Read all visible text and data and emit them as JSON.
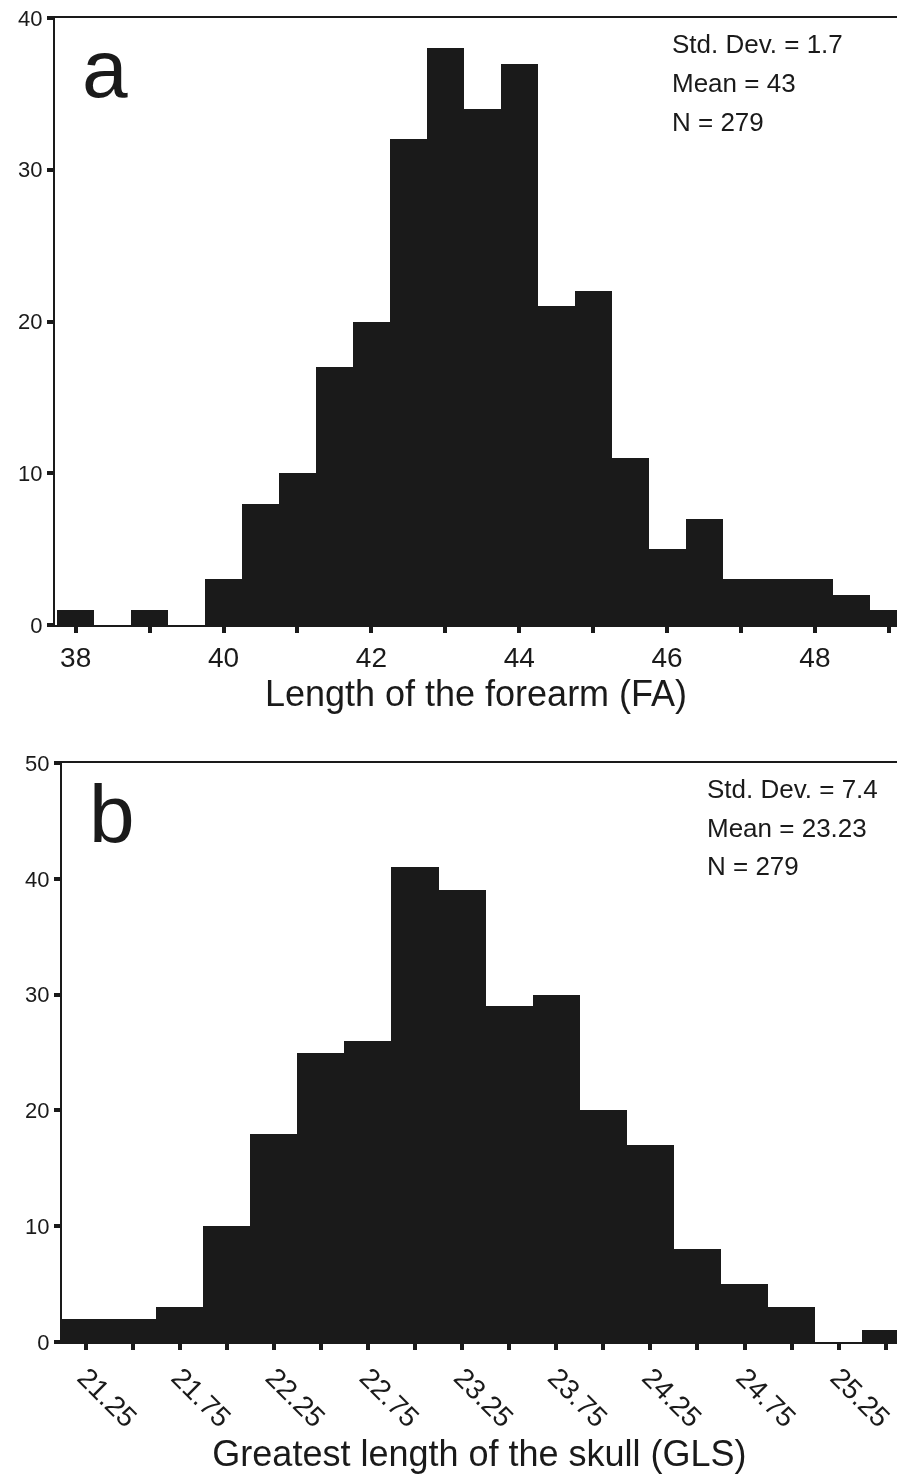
{
  "chart_data": [
    {
      "type": "histogram",
      "color": "#1a1a1a",
      "xlabel": "Length of the forearm (FA)",
      "bins": [
        37.75,
        38.25,
        38.75,
        39.25,
        39.75,
        40.25,
        40.75,
        41.25,
        41.75,
        42.25,
        42.75,
        43.25,
        43.75,
        44.25,
        44.75,
        45.25,
        45.75,
        46.25,
        46.75,
        47.25,
        47.75,
        48.25,
        48.75,
        49.25
      ],
      "values": [
        1,
        0,
        1,
        0,
        3,
        8,
        10,
        17,
        20,
        32,
        38,
        34,
        37,
        21,
        22,
        11,
        5,
        7,
        3,
        3,
        3,
        2,
        1
      ],
      "xlim": [
        37.72,
        49.11
      ],
      "xticks": [
        38,
        {
          "value": 39,
          "label": null
        },
        40,
        {
          "value": 41,
          "label": null
        },
        42,
        {
          "value": 43,
          "label": null
        },
        44,
        {
          "value": 45,
          "label": null
        },
        46,
        {
          "value": 47,
          "label": null
        },
        48,
        {
          "value": 49,
          "label": null
        }
      ],
      "ylim": [
        0,
        40
      ],
      "yticks": [
        0,
        10,
        20,
        30,
        40
      ],
      "annotations": [
        "a",
        "Std. Dev. = 1.7",
        "Mean = 43",
        "N = 279"
      ]
    },
    {
      "type": "histogram",
      "color": "#1a1a1a",
      "xlabel": "Greatest length of the skull (GLS)",
      "bins": [
        21.125,
        21.375,
        21.625,
        21.875,
        22.125,
        22.375,
        22.625,
        22.875,
        23.125,
        23.375,
        23.625,
        23.875,
        24.125,
        24.375,
        24.625,
        24.875,
        25.125,
        25.375,
        25.625
      ],
      "values": [
        2,
        2,
        3,
        10,
        18,
        25,
        26,
        41,
        39,
        29,
        30,
        20,
        17,
        8,
        5,
        3,
        0,
        1
      ],
      "xlim": [
        21.125,
        25.56
      ],
      "xticks": [
        21.25,
        {
          "value": 21.5,
          "label": null
        },
        21.75,
        {
          "value": 22.0,
          "label": null
        },
        22.25,
        {
          "value": 22.5,
          "label": null
        },
        22.75,
        {
          "value": 23.0,
          "label": null
        },
        23.25,
        {
          "value": 23.5,
          "label": null
        },
        23.75,
        {
          "value": 24.0,
          "label": null
        },
        24.25,
        {
          "value": 24.5,
          "label": null
        },
        24.75,
        {
          "value": 25.0,
          "label": null
        },
        25.25,
        {
          "value": 25.5,
          "label": null
        }
      ],
      "ylim": [
        0,
        50
      ],
      "yticks": [
        0,
        10,
        20,
        30,
        40,
        50
      ],
      "annotations": [
        "b",
        "Std. Dev. = 7.4",
        "Mean = 23.23",
        "N = 279"
      ]
    }
  ]
}
